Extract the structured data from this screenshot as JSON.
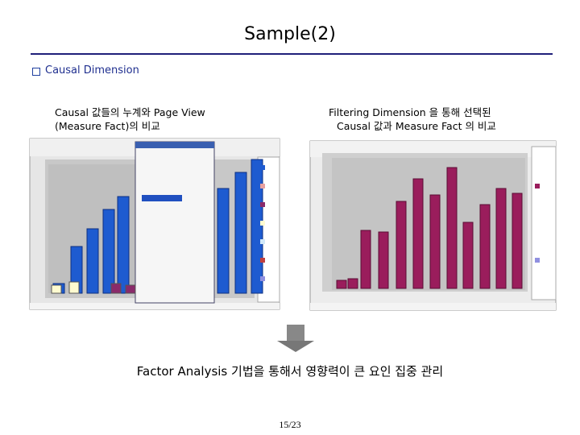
{
  "header": {
    "title": "Sample(2)"
  },
  "section": {
    "bullet": "Causal Dimension"
  },
  "panels": [
    {
      "caption": [
        "Causal 값들의 누계와 Page View",
        "(Measure Fact)의 비교"
      ]
    },
    {
      "caption": [
        "Filtering Dimension 을 통해 선택된",
        "Causal 값과 Measure Fact 의 비교"
      ]
    }
  ],
  "conclusion": "Factor Analysis 기법을 통해서 영향력이 큰 요인 집중 관리",
  "footer": {
    "page_number": "15/23"
  }
}
